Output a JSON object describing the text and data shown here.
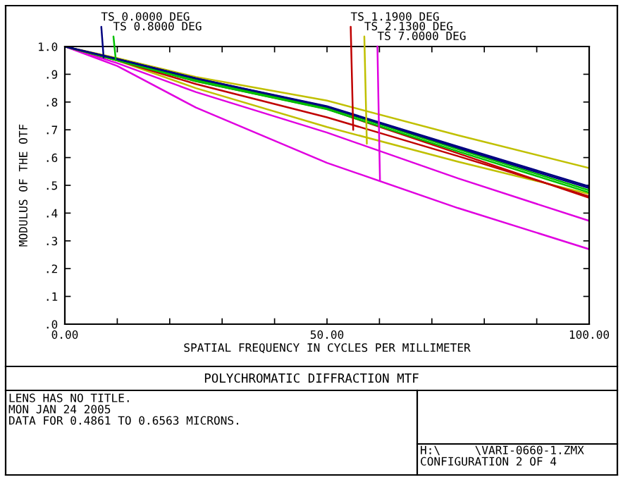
{
  "chart_data": {
    "type": "line",
    "title": "POLYCHROMATIC DIFFRACTION MTF",
    "xlabel": "SPATIAL FREQUENCY IN CYCLES PER MILLIMETER",
    "ylabel": "MODULUS OF THE OTF",
    "x": [
      0,
      10,
      25,
      50,
      75,
      100
    ],
    "series": [
      {
        "color": "#000080",
        "values": [
          1,
          0.955,
          0.885,
          0.785,
          0.64,
          0.496
        ]
      },
      {
        "color": "#000080",
        "values": [
          1,
          0.955,
          0.885,
          0.783,
          0.635,
          0.49
        ]
      },
      {
        "color": "#00c000",
        "values": [
          1,
          0.952,
          0.88,
          0.78,
          0.63,
          0.482
        ]
      },
      {
        "color": "#00c000",
        "values": [
          1,
          0.95,
          0.875,
          0.774,
          0.622,
          0.474
        ]
      },
      {
        "color": "#c00000",
        "values": [
          1,
          0.95,
          0.865,
          0.745,
          0.605,
          0.46
        ]
      },
      {
        "color": "#c00000",
        "values": [
          1,
          0.952,
          0.875,
          0.775,
          0.615,
          0.455
        ]
      },
      {
        "color": "#c0c000",
        "values": [
          1,
          0.958,
          0.89,
          0.805,
          0.68,
          0.562
        ]
      },
      {
        "color": "#c0c000",
        "values": [
          1,
          0.95,
          0.85,
          0.71,
          0.585,
          0.469
        ]
      },
      {
        "color": "#e000e0",
        "values": [
          1,
          0.94,
          0.836,
          0.69,
          0.525,
          0.372
        ]
      },
      {
        "color": "#e000e0",
        "values": [
          1,
          0.93,
          0.78,
          0.581,
          0.418,
          0.27
        ]
      }
    ],
    "xlim": [
      0,
      100
    ],
    "xticks": [
      {
        "value": 0,
        "label": "0.00"
      },
      {
        "value": 10,
        "label": null
      },
      {
        "value": 20,
        "label": null
      },
      {
        "value": 30,
        "label": null
      },
      {
        "value": 40,
        "label": null
      },
      {
        "value": 50,
        "label": "50.00"
      },
      {
        "value": 60,
        "label": null
      },
      {
        "value": 70,
        "label": null
      },
      {
        "value": 80,
        "label": null
      },
      {
        "value": 90,
        "label": null
      },
      {
        "value": 100,
        "label": "100.00"
      }
    ],
    "ylim": [
      0,
      1
    ],
    "yticks": [
      {
        "value": 0,
        "label": ".0"
      },
      {
        "value": 0.1,
        "label": ".1"
      },
      {
        "value": 0.2,
        "label": ".2"
      },
      {
        "value": 0.3,
        "label": ".3"
      },
      {
        "value": 0.4,
        "label": ".4"
      },
      {
        "value": 0.5,
        "label": ".5"
      },
      {
        "value": 0.6,
        "label": ".6"
      },
      {
        "value": 0.7,
        "label": ".7"
      },
      {
        "value": 0.8,
        "label": ".8"
      },
      {
        "value": 0.9,
        "label": ".9"
      },
      {
        "value": 1,
        "label": "1.0"
      }
    ],
    "grid": false,
    "line_style": "solid",
    "annotations": [
      {
        "text": "TS 0.0000 DEG",
        "x": 7.4,
        "y": 0.96
      },
      {
        "text": "TS 0.8000 DEG",
        "x": 9.7,
        "y": 0.955
      },
      {
        "text": "TS 1.1900 DEG",
        "x": 55,
        "y": 0.7
      },
      {
        "text": "TS 2.1300 DEG",
        "x": 57.6,
        "y": 0.65
      },
      {
        "text": "TS 7.0000 DEG",
        "x": 60.1,
        "y": 0.52
      },
      "LENS HAS NO TITLE.",
      "MON JAN 24 2005",
      "DATA FOR 0.4861 TO 0.6563 MICRONS.",
      "H:\\     \\VARI-0660-1.ZMX",
      "CONFIGURATION 2 OF 4"
    ]
  }
}
